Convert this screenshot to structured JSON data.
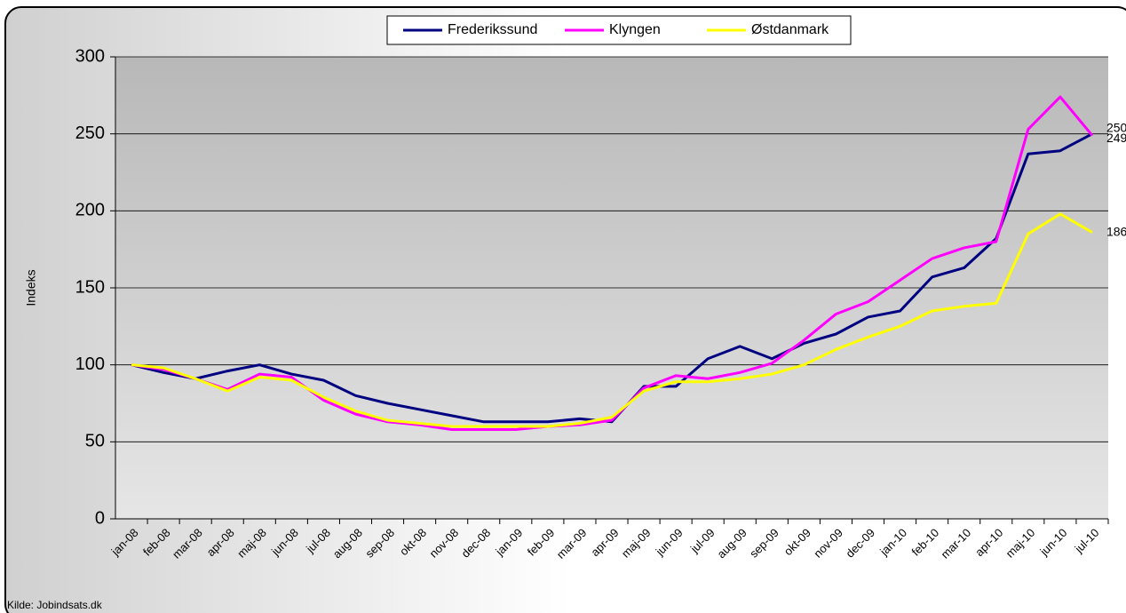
{
  "chart_data": {
    "type": "line",
    "y_label": "Indeks",
    "source": "Kilde: Jobindsats.dk",
    "categories": [
      "jan-08",
      "feb-08",
      "mar-08",
      "apr-08",
      "maj-08",
      "jun-08",
      "jul-08",
      "aug-08",
      "sep-08",
      "okt-08",
      "nov-08",
      "dec-08",
      "jan-09",
      "feb-09",
      "mar-09",
      "apr-09",
      "maj-09",
      "jun-09",
      "jul-09",
      "aug-09",
      "sep-09",
      "okt-09",
      "nov-09",
      "dec-09",
      "jan-10",
      "feb-10",
      "mar-10",
      "apr-10",
      "maj-10",
      "jun-10",
      "jul-10"
    ],
    "series": [
      {
        "name": "Frederikssund",
        "color": "#000080",
        "values": [
          100,
          95,
          91,
          96,
          100,
          94,
          90,
          80,
          75,
          71,
          67,
          63,
          63,
          63,
          65,
          63,
          86,
          86,
          104,
          112,
          104,
          114,
          120,
          131,
          135,
          157,
          163,
          182,
          237,
          239,
          250
        ]
      },
      {
        "name": "Klyngen",
        "color": "#ff00ff",
        "values": [
          100,
          97,
          91,
          84,
          94,
          92,
          77,
          68,
          63,
          61,
          58,
          58,
          58,
          60,
          61,
          64,
          85,
          93,
          91,
          95,
          101,
          116,
          133,
          141,
          155,
          169,
          176,
          180,
          253,
          274,
          249
        ]
      },
      {
        "name": "Østdanmark",
        "color": "#ffff00",
        "values": [
          100,
          98,
          91,
          83,
          92,
          90,
          79,
          70,
          64,
          62,
          60,
          60,
          60,
          60,
          62,
          66,
          83,
          89,
          89,
          91,
          94,
          100,
          110,
          118,
          125,
          135,
          138,
          140,
          185,
          198,
          186
        ]
      }
    ],
    "ylim": [
      0,
      300
    ],
    "yticks": [
      0,
      50,
      100,
      150,
      200,
      250,
      300
    ],
    "grid": true,
    "legend": "top"
  }
}
